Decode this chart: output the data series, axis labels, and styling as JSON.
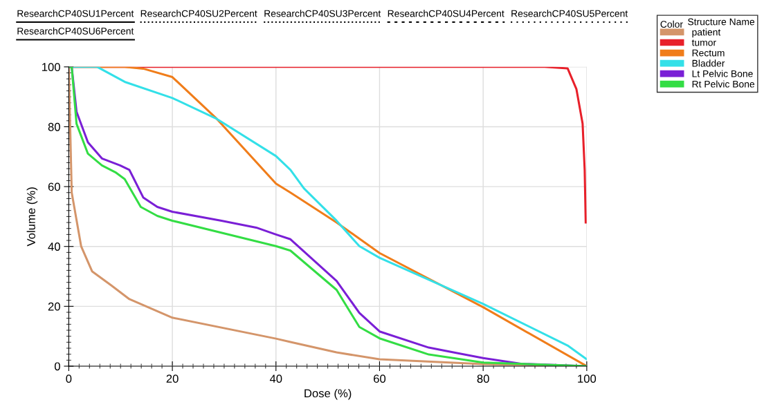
{
  "chart_data": {
    "type": "line",
    "xlabel": "Dose (%)",
    "ylabel": "Volume (%)",
    "xlim": [
      0,
      100
    ],
    "ylim": [
      0,
      100
    ],
    "xticks": [
      0,
      20,
      40,
      60,
      80,
      100
    ],
    "yticks": [
      0,
      20,
      40,
      60,
      80,
      100
    ],
    "grid": true,
    "legend": "right",
    "legend_title": "Structure Name",
    "marker": "none",
    "line_style": "solid",
    "annotations": [
      "ResearchCP40SU1Percent",
      "ResearchCP40SU2Percent",
      "ResearchCP40SU3Percent",
      "ResearchCP40SU4Percent",
      "ResearchCP40SU5Percent",
      "ResearchCP40SU6Percent",
      "Color"
    ],
    "series": [
      {
        "name": "patient",
        "color": "#d4956a",
        "x": [
          0,
          0.57,
          2.4,
          4.5,
          8.2,
          11.7,
          20,
          40,
          42.8,
          51.7,
          60,
          80,
          100
        ],
        "values": [
          100,
          58,
          40,
          31.7,
          27,
          22.4,
          16.2,
          9.2,
          8.1,
          4.6,
          2.3,
          0.7,
          0
        ]
      },
      {
        "name": "tumor",
        "color": "#e8202a",
        "x": [
          0,
          91.9,
          96.3,
          98,
          99.2,
          99.6,
          99.8
        ],
        "values": [
          100,
          100,
          99.5,
          92.6,
          81,
          65.6,
          48
        ]
      },
      {
        "name": "Rectum",
        "color": "#f07d1a",
        "x": [
          0,
          10.8,
          14.4,
          20,
          28.6,
          40,
          42.8,
          51.7,
          60,
          80,
          100
        ],
        "values": [
          100,
          100,
          99.4,
          96.6,
          82.6,
          61,
          58,
          48,
          37.8,
          19.7,
          0
        ]
      },
      {
        "name": "Bladder",
        "color": "#33e0e8",
        "x": [
          0,
          5.5,
          10.8,
          20,
          28.6,
          40,
          42.8,
          45.4,
          51.7,
          56.1,
          60,
          80,
          96.3,
          100
        ],
        "values": [
          100,
          100,
          95,
          89.6,
          82.6,
          70.2,
          65.6,
          59.4,
          48.6,
          40.1,
          36.2,
          20.8,
          6.9,
          2.3
        ]
      },
      {
        "name": "Lt Pelvic Bone",
        "color": "#7a1fd6",
        "x": [
          0,
          0.57,
          1.5,
          3.7,
          6.4,
          9.9,
          11.7,
          14.4,
          17.1,
          20,
          29.5,
          36.2,
          40,
          42.8,
          51.7,
          56.1,
          60,
          69.5,
          80,
          87.3,
          100
        ],
        "values": [
          100,
          100,
          85,
          74.8,
          69.4,
          67.1,
          65.6,
          56.3,
          53.2,
          51.6,
          48.6,
          46.3,
          44,
          42.4,
          28.5,
          17.8,
          11.6,
          6.2,
          2.7,
          0.8,
          0
        ]
      },
      {
        "name": "Rt Pelvic Bone",
        "color": "#33dd44",
        "x": [
          0,
          0.57,
          1.5,
          3.7,
          6.4,
          9,
          10.8,
          13.9,
          17.1,
          20,
          40,
          42.8,
          51.7,
          56.1,
          60,
          69.5,
          80,
          100
        ],
        "values": [
          100,
          100,
          81,
          71,
          67.1,
          64.8,
          62.5,
          53.2,
          50.2,
          48.6,
          40.1,
          38.6,
          25.5,
          13.1,
          9.3,
          3.9,
          1.2,
          0
        ]
      }
    ]
  }
}
